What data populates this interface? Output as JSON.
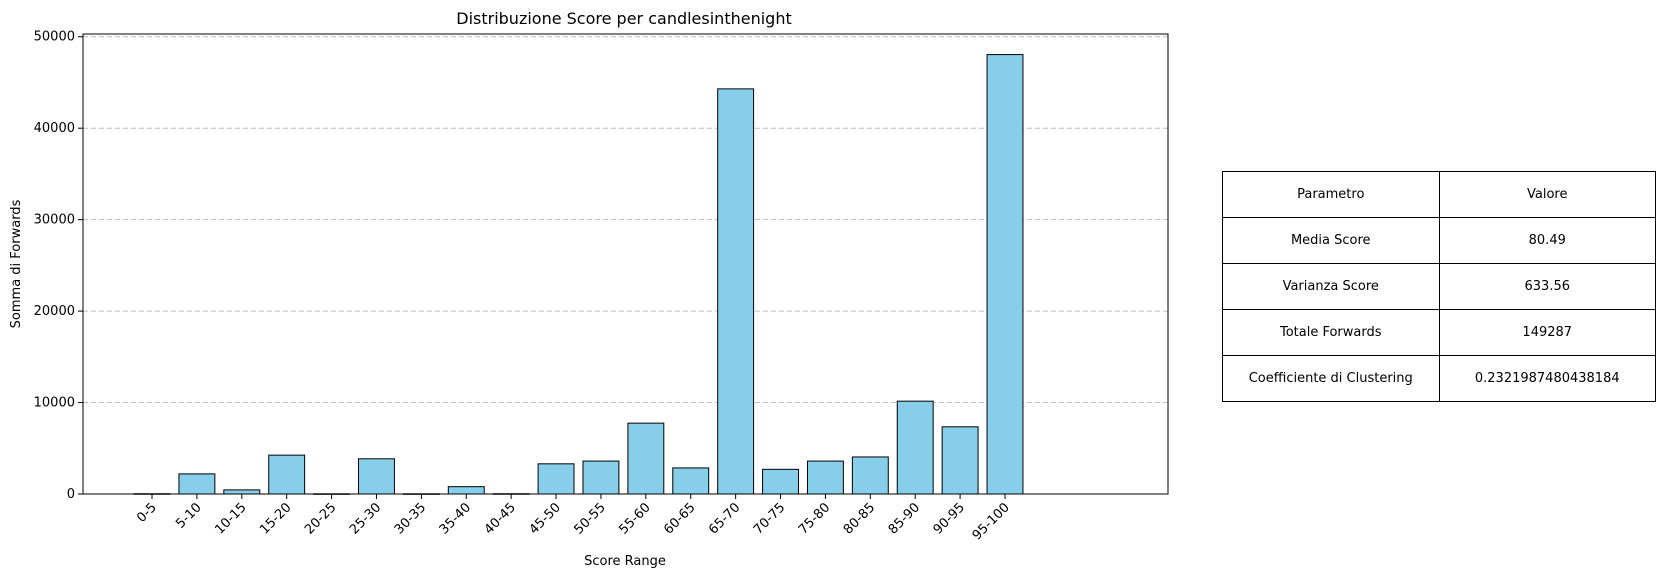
{
  "chart_data": {
    "type": "bar",
    "title": "Distribuzione Score per candlesinthenight",
    "xlabel": "Score Range",
    "ylabel": "Somma di Forwards",
    "categories": [
      "0-5",
      "5-10",
      "10-15",
      "15-20",
      "20-25",
      "25-30",
      "30-35",
      "35-40",
      "40-45",
      "45-50",
      "50-55",
      "55-60",
      "60-65",
      "65-70",
      "70-75",
      "75-80",
      "80-85",
      "85-90",
      "90-95",
      "95-100"
    ],
    "values": [
      30,
      2200,
      450,
      4250,
      20,
      3850,
      20,
      800,
      30,
      3300,
      3600,
      7750,
      2850,
      44300,
      2700,
      3600,
      4050,
      10150,
      7350,
      48050
    ],
    "ylim": [
      0,
      50300
    ],
    "yticks": [
      0,
      10000,
      20000,
      30000,
      40000,
      50000
    ],
    "bar_color": "#87ceeb",
    "edge_color": "#000000",
    "grid": "y-dashed"
  },
  "stats_table": {
    "header": {
      "param": "Parametro",
      "value": "Valore"
    },
    "rows": [
      {
        "param": "Media Score",
        "value": "80.49"
      },
      {
        "param": "Varianza Score",
        "value": "633.56"
      },
      {
        "param": "Totale Forwards",
        "value": "149287"
      },
      {
        "param": "Coefficiente di Clustering",
        "value": "0.2321987480438184"
      }
    ]
  }
}
